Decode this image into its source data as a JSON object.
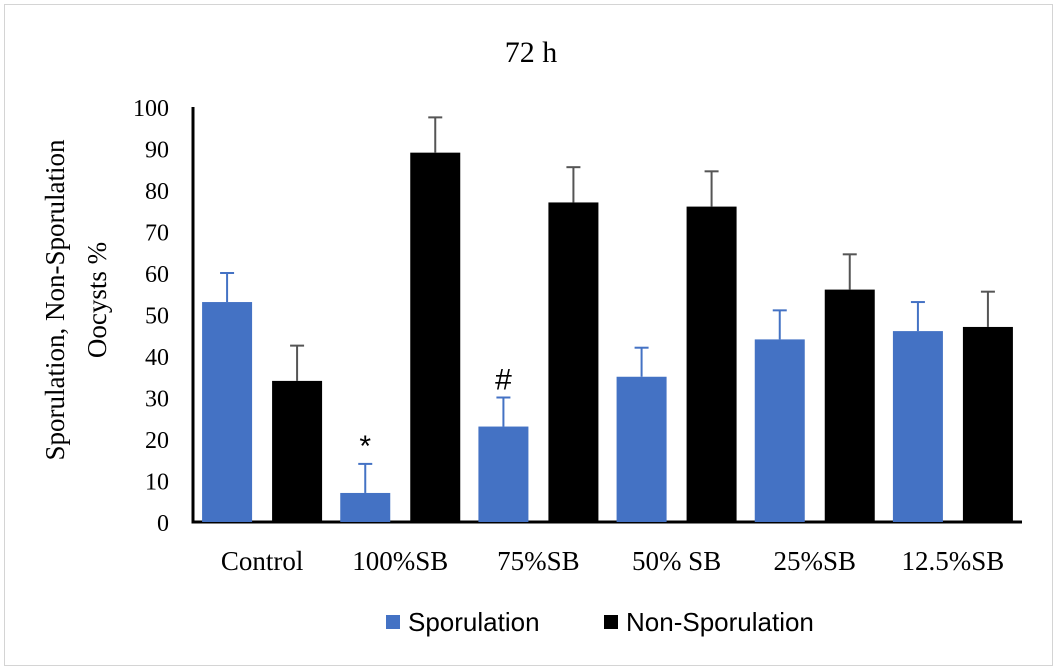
{
  "chart_data": {
    "type": "bar",
    "title": "72 h",
    "ylabel_lines": [
      "Sporulation, Non-Sporulation",
      "Oocysts %"
    ],
    "xlabel": "",
    "ylim": [
      0,
      100
    ],
    "yticks": [
      0,
      10,
      20,
      30,
      40,
      50,
      60,
      70,
      80,
      90,
      100
    ],
    "grid": false,
    "legend_position": "bottom",
    "categories": [
      "Control",
      "100%SB",
      "75%SB",
      "50% SB",
      "25%SB",
      "12.5%SB"
    ],
    "series": [
      {
        "name": "Sporulation",
        "color": "#4472c4",
        "values": [
          53,
          7,
          23,
          35,
          44,
          46
        ],
        "errors": [
          7,
          7,
          7,
          7,
          7,
          7
        ]
      },
      {
        "name": "Non-Sporulation",
        "color": "#000000",
        "values": [
          34,
          89,
          77,
          76,
          56,
          47
        ],
        "errors": [
          8.5,
          8.5,
          8.5,
          8.5,
          8.5,
          8.5
        ]
      }
    ],
    "annotations": [
      {
        "series": 0,
        "category": 1,
        "text": "*"
      },
      {
        "series": 0,
        "category": 2,
        "text": "#"
      }
    ]
  }
}
